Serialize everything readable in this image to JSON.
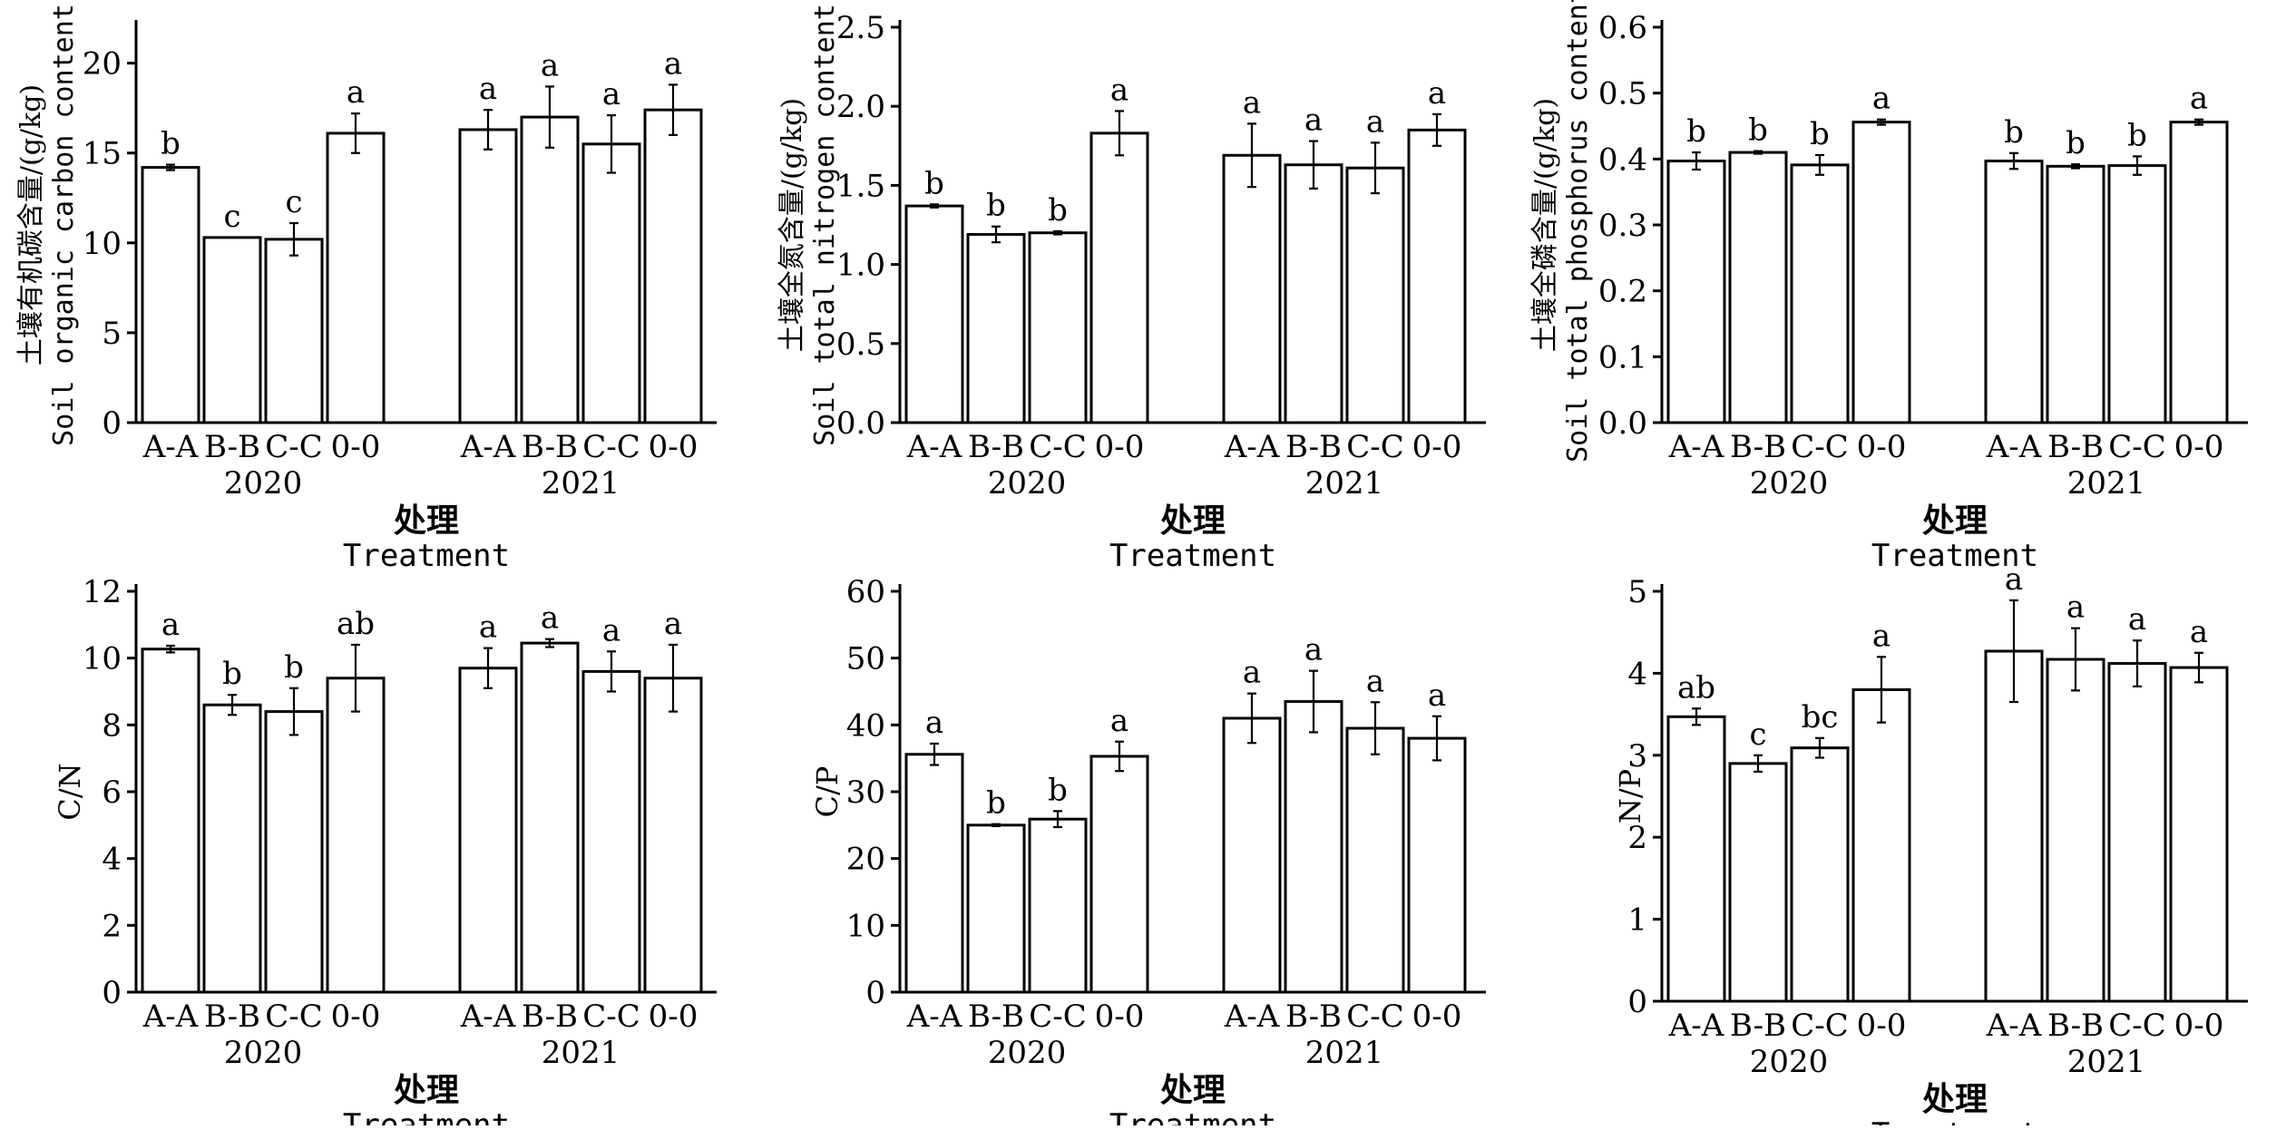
{
  "chart_data": [
    {
      "type": "bar",
      "ylabel_cn": "土壤有机碳含量/(g/kg)",
      "ylabel_en": "Soil organic carbon content",
      "xlabel_cn": "处理",
      "xlabel_en": "Treatment",
      "ylim": [
        0,
        22
      ],
      "yticks": [
        "0",
        "5",
        "10",
        "15",
        "20"
      ],
      "ytick_values": [
        0,
        5,
        10,
        15,
        20
      ],
      "groups": [
        {
          "year": "2020",
          "categories": [
            "A-A",
            "B-B",
            "C-C",
            "0-0"
          ],
          "values": [
            14.2,
            10.3,
            10.2,
            16.1
          ],
          "errors": [
            0.15,
            0.0,
            0.9,
            1.1
          ],
          "letters": [
            "b",
            "c",
            "c",
            "a"
          ]
        },
        {
          "year": "2021",
          "categories": [
            "A-A",
            "B-B",
            "C-C",
            "0-0"
          ],
          "values": [
            16.3,
            17.0,
            15.5,
            17.4
          ],
          "errors": [
            1.1,
            1.7,
            1.6,
            1.4
          ],
          "letters": [
            "a",
            "a",
            "a",
            "a"
          ]
        }
      ]
    },
    {
      "type": "bar",
      "ylabel_cn": "土壤全氮含量/(g/kg)",
      "ylabel_en": "Soil total nitrogen content",
      "xlabel_cn": "处理",
      "xlabel_en": "Treatment",
      "ylim": [
        0,
        2.5
      ],
      "yticks": [
        "0.0",
        "0.5",
        "1.0",
        "1.5",
        "2.0",
        "2.5"
      ],
      "ytick_values": [
        0,
        0.5,
        1.0,
        1.5,
        2.0,
        2.5
      ],
      "groups": [
        {
          "year": "2020",
          "categories": [
            "A-A",
            "B-B",
            "C-C",
            "0-0"
          ],
          "values": [
            1.37,
            1.19,
            1.2,
            1.83
          ],
          "errors": [
            0.01,
            0.05,
            0.01,
            0.14
          ],
          "letters": [
            "b",
            "b",
            "b",
            "a"
          ]
        },
        {
          "year": "2021",
          "categories": [
            "A-A",
            "B-B",
            "C-C",
            "0-0"
          ],
          "values": [
            1.69,
            1.63,
            1.61,
            1.85
          ],
          "errors": [
            0.2,
            0.15,
            0.16,
            0.1
          ],
          "letters": [
            "a",
            "a",
            "a",
            "a"
          ]
        }
      ]
    },
    {
      "type": "bar",
      "ylabel_cn": "土壤全磷含量/(g/kg)",
      "ylabel_en": "Soil total phosphorus content",
      "xlabel_cn": "处理",
      "xlabel_en": "Treatment",
      "ylim": [
        0,
        0.6
      ],
      "yticks": [
        "0.0",
        "0.1",
        "0.2",
        "0.3",
        "0.4",
        "0.5",
        "0.6"
      ],
      "ytick_values": [
        0,
        0.1,
        0.2,
        0.3,
        0.4,
        0.5,
        0.6
      ],
      "groups": [
        {
          "year": "2020",
          "categories": [
            "A-A",
            "B-B",
            "C-C",
            "0-0"
          ],
          "values": [
            0.397,
            0.41,
            0.391,
            0.456
          ],
          "errors": [
            0.013,
            0.002,
            0.015,
            0.004
          ],
          "letters": [
            "b",
            "b",
            "b",
            "a"
          ]
        },
        {
          "year": "2021",
          "categories": [
            "A-A",
            "B-B",
            "C-C",
            "0-0"
          ],
          "values": [
            0.397,
            0.389,
            0.39,
            0.456
          ],
          "errors": [
            0.012,
            0.003,
            0.014,
            0.004
          ],
          "letters": [
            "b",
            "b",
            "b",
            "a"
          ]
        }
      ]
    },
    {
      "type": "bar",
      "ylabel_cn": "",
      "ylabel_en": "C/N",
      "xlabel_cn": "处理",
      "xlabel_en": "Treatment",
      "ylim": [
        0,
        12
      ],
      "yticks": [
        "0",
        "2",
        "4",
        "6",
        "8",
        "10",
        "12"
      ],
      "ytick_values": [
        0,
        2,
        4,
        6,
        8,
        10,
        12
      ],
      "groups": [
        {
          "year": "2020",
          "categories": [
            "A-A",
            "B-B",
            "C-C",
            "0-0"
          ],
          "values": [
            10.27,
            8.6,
            8.4,
            9.4
          ],
          "errors": [
            0.1,
            0.3,
            0.7,
            1.0
          ],
          "letters": [
            "a",
            "b",
            "b",
            "ab"
          ]
        },
        {
          "year": "2021",
          "categories": [
            "A-A",
            "B-B",
            "C-C",
            "0-0"
          ],
          "values": [
            9.7,
            10.45,
            9.6,
            9.4
          ],
          "errors": [
            0.6,
            0.12,
            0.6,
            1.0
          ],
          "letters": [
            "a",
            "a",
            "a",
            "a"
          ]
        }
      ]
    },
    {
      "type": "bar",
      "ylabel_cn": "",
      "ylabel_en": "C/P",
      "xlabel_cn": "处理",
      "xlabel_en": "Treatment",
      "ylim": [
        0,
        60
      ],
      "yticks": [
        "0",
        "10",
        "20",
        "30",
        "40",
        "50",
        "60"
      ],
      "ytick_values": [
        0,
        10,
        20,
        30,
        40,
        50,
        60
      ],
      "groups": [
        {
          "year": "2020",
          "categories": [
            "A-A",
            "B-B",
            "C-C",
            "0-0"
          ],
          "values": [
            35.6,
            25.0,
            25.9,
            35.3
          ],
          "errors": [
            1.6,
            0.15,
            1.2,
            2.2
          ],
          "letters": [
            "a",
            "b",
            "b",
            "a"
          ]
        },
        {
          "year": "2021",
          "categories": [
            "A-A",
            "B-B",
            "C-C",
            "0-0"
          ],
          "values": [
            41.0,
            43.5,
            39.5,
            38.0
          ],
          "errors": [
            3.7,
            4.6,
            3.9,
            3.3
          ],
          "letters": [
            "a",
            "a",
            "a",
            "a"
          ]
        }
      ]
    },
    {
      "type": "bar",
      "ylabel_cn": "",
      "ylabel_en": "N/P",
      "xlabel_cn": "处理",
      "xlabel_en": "Treatment",
      "ylim": [
        0,
        5
      ],
      "yticks": [
        "0",
        "1",
        "2",
        "3",
        "4",
        "5"
      ],
      "ytick_values": [
        0,
        1,
        2,
        3,
        4,
        5
      ],
      "groups": [
        {
          "year": "2020",
          "categories": [
            "A-A",
            "B-B",
            "C-C",
            "0-0"
          ],
          "values": [
            3.47,
            2.9,
            3.09,
            3.8
          ],
          "errors": [
            0.1,
            0.1,
            0.12,
            0.4
          ],
          "letters": [
            "ab",
            "c",
            "bc",
            "a"
          ]
        },
        {
          "year": "2021",
          "categories": [
            "A-A",
            "B-B",
            "C-C",
            "0-0"
          ],
          "values": [
            4.27,
            4.17,
            4.12,
            4.07
          ],
          "errors": [
            0.62,
            0.38,
            0.28,
            0.18
          ],
          "letters": [
            "a",
            "a",
            "a",
            "a"
          ]
        }
      ]
    }
  ]
}
